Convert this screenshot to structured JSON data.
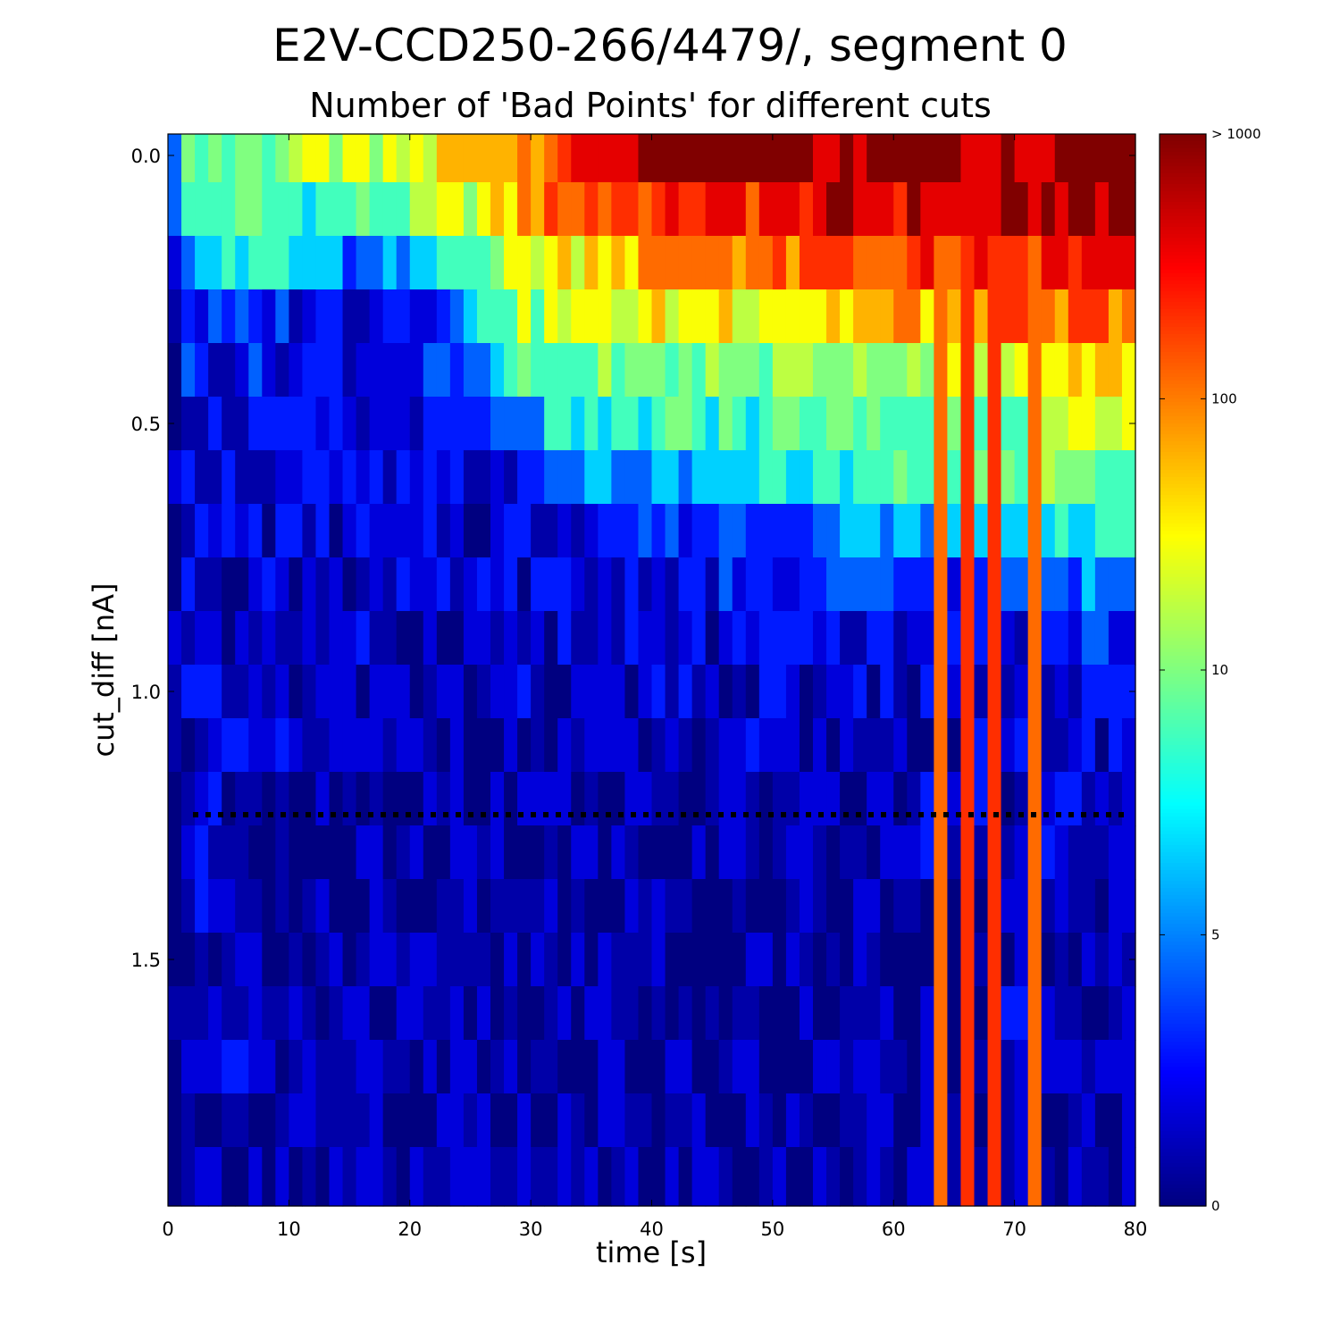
{
  "chart_data": {
    "type": "heatmap",
    "title": "E2V-CCD250-266/4479/, segment 0",
    "subtitle": "Number of 'Bad Points' for different cuts",
    "xlabel": "time [s]",
    "ylabel": "cut_diff [nA]",
    "xlim": [
      0,
      80
    ],
    "ylim": [
      -0.04,
      1.96
    ],
    "y_inverted": true,
    "x_ticks": [
      "0",
      "10",
      "20",
      "30",
      "40",
      "50",
      "60",
      "70",
      "80"
    ],
    "x_tick_values": [
      0,
      10,
      20,
      30,
      40,
      50,
      60,
      70,
      80
    ],
    "y_ticks": [
      "0.0",
      "0.5",
      "1.0",
      "1.5"
    ],
    "y_tick_values": [
      0.0,
      0.5,
      1.0,
      1.5
    ],
    "threshold_line": {
      "y": 1.23,
      "style": "dotted",
      "color": "#000000"
    },
    "colorbar": {
      "scale": "log-like",
      "ticks": [
        "0",
        "5",
        "10",
        "100",
        "> 1000"
      ],
      "tick_levels": [
        0,
        0.253,
        0.5,
        0.753,
        1.0
      ],
      "colormap": "jet"
    },
    "grid": false,
    "n_time_bins": 72,
    "cut_diff_bins": [
      0.0,
      0.1,
      0.2,
      0.3,
      0.4,
      0.5,
      0.6,
      0.7,
      0.8,
      0.9,
      1.0,
      1.1,
      1.2,
      1.3,
      1.4,
      1.5,
      1.6,
      1.7,
      1.8,
      1.9
    ],
    "row_profiles": [
      [
        [
          0,
          0.36
        ],
        [
          1,
          0.45
        ],
        [
          16,
          0.58
        ],
        [
          17,
          0.5
        ],
        [
          22,
          0.62
        ],
        [
          26,
          0.7
        ],
        [
          32,
          0.83
        ],
        [
          42,
          1.0
        ],
        [
          80,
          1.0
        ]
      ],
      [
        [
          0,
          0.33
        ],
        [
          1,
          0.42
        ],
        [
          16,
          0.45
        ],
        [
          17,
          0.44
        ],
        [
          24,
          0.56
        ],
        [
          27,
          0.66
        ],
        [
          33,
          0.8
        ],
        [
          42,
          0.84
        ],
        [
          62,
          0.92
        ],
        [
          80,
          0.97
        ]
      ],
      [
        [
          0,
          0.15
        ],
        [
          1,
          0.3
        ],
        [
          6,
          0.36
        ],
        [
          7,
          0.44
        ],
        [
          16,
          0.2
        ],
        [
          21,
          0.3
        ],
        [
          24,
          0.45
        ],
        [
          30,
          0.6
        ],
        [
          42,
          0.74
        ],
        [
          60,
          0.8
        ],
        [
          80,
          0.9
        ]
      ],
      [
        [
          0,
          0.15
        ],
        [
          16,
          0.12
        ],
        [
          24,
          0.2
        ],
        [
          26,
          0.45
        ],
        [
          33,
          0.58
        ],
        [
          45,
          0.63
        ],
        [
          60,
          0.7
        ],
        [
          80,
          0.78
        ]
      ],
      [
        [
          0,
          0.14
        ],
        [
          16,
          0.1
        ],
        [
          25,
          0.16
        ],
        [
          28,
          0.4
        ],
        [
          33,
          0.45
        ],
        [
          45,
          0.5
        ],
        [
          60,
          0.55
        ],
        [
          80,
          0.68
        ]
      ],
      [
        [
          0,
          0.12
        ],
        [
          18,
          0.08
        ],
        [
          28,
          0.15
        ],
        [
          31,
          0.33
        ],
        [
          45,
          0.44
        ],
        [
          60,
          0.47
        ],
        [
          80,
          0.55
        ]
      ],
      [
        [
          0,
          0.11
        ],
        [
          18,
          0.07
        ],
        [
          30,
          0.1
        ],
        [
          33,
          0.25
        ],
        [
          45,
          0.32
        ],
        [
          60,
          0.44
        ],
        [
          80,
          0.5
        ]
      ],
      [
        [
          0,
          0.1
        ],
        [
          20,
          0.06
        ],
        [
          32,
          0.09
        ],
        [
          36,
          0.15
        ],
        [
          50,
          0.2
        ],
        [
          60,
          0.28
        ],
        [
          80,
          0.4
        ]
      ],
      [
        [
          0,
          0.09
        ],
        [
          20,
          0.06
        ],
        [
          35,
          0.08
        ],
        [
          50,
          0.12
        ],
        [
          60,
          0.16
        ],
        [
          80,
          0.24
        ]
      ],
      [
        [
          0,
          0.09
        ],
        [
          20,
          0.05
        ],
        [
          35,
          0.06
        ],
        [
          55,
          0.09
        ],
        [
          80,
          0.15
        ]
      ],
      [
        [
          0,
          0.08
        ],
        [
          20,
          0.05
        ],
        [
          40,
          0.05
        ],
        [
          60,
          0.07
        ],
        [
          80,
          0.11
        ]
      ],
      [
        [
          0,
          0.08
        ],
        [
          20,
          0.05
        ],
        [
          40,
          0.04
        ],
        [
          60,
          0.06
        ],
        [
          80,
          0.1
        ]
      ],
      [
        [
          0,
          0.07
        ],
        [
          20,
          0.04
        ],
        [
          40,
          0.04
        ],
        [
          60,
          0.05
        ],
        [
          80,
          0.09
        ]
      ],
      [
        [
          0,
          0.06
        ],
        [
          20,
          0.04
        ],
        [
          40,
          0.04
        ],
        [
          60,
          0.05
        ],
        [
          80,
          0.08
        ]
      ],
      [
        [
          0,
          0.06
        ],
        [
          20,
          0.04
        ],
        [
          40,
          0.03
        ],
        [
          60,
          0.05
        ],
        [
          80,
          0.07
        ]
      ],
      [
        [
          0,
          0.06
        ],
        [
          20,
          0.04
        ],
        [
          40,
          0.03
        ],
        [
          60,
          0.04
        ],
        [
          80,
          0.07
        ]
      ],
      [
        [
          0,
          0.06
        ],
        [
          20,
          0.04
        ],
        [
          40,
          0.03
        ],
        [
          60,
          0.04
        ],
        [
          80,
          0.07
        ]
      ],
      [
        [
          0,
          0.05
        ],
        [
          20,
          0.03
        ],
        [
          40,
          0.03
        ],
        [
          60,
          0.04
        ],
        [
          80,
          0.06
        ]
      ],
      [
        [
          0,
          0.05
        ],
        [
          20,
          0.03
        ],
        [
          40,
          0.03
        ],
        [
          60,
          0.04
        ],
        [
          80,
          0.06
        ]
      ],
      [
        [
          0,
          0.04
        ],
        [
          20,
          0.03
        ],
        [
          40,
          0.03
        ],
        [
          60,
          0.04
        ],
        [
          80,
          0.05
        ]
      ]
    ],
    "hot_columns": [
      {
        "column": 57,
        "level": 0.79
      },
      {
        "column": 59,
        "level": 0.84
      },
      {
        "column": 61,
        "level": 0.8
      },
      {
        "column": 64,
        "level": 0.75
      }
    ],
    "first_column_offset": -0.08
  }
}
